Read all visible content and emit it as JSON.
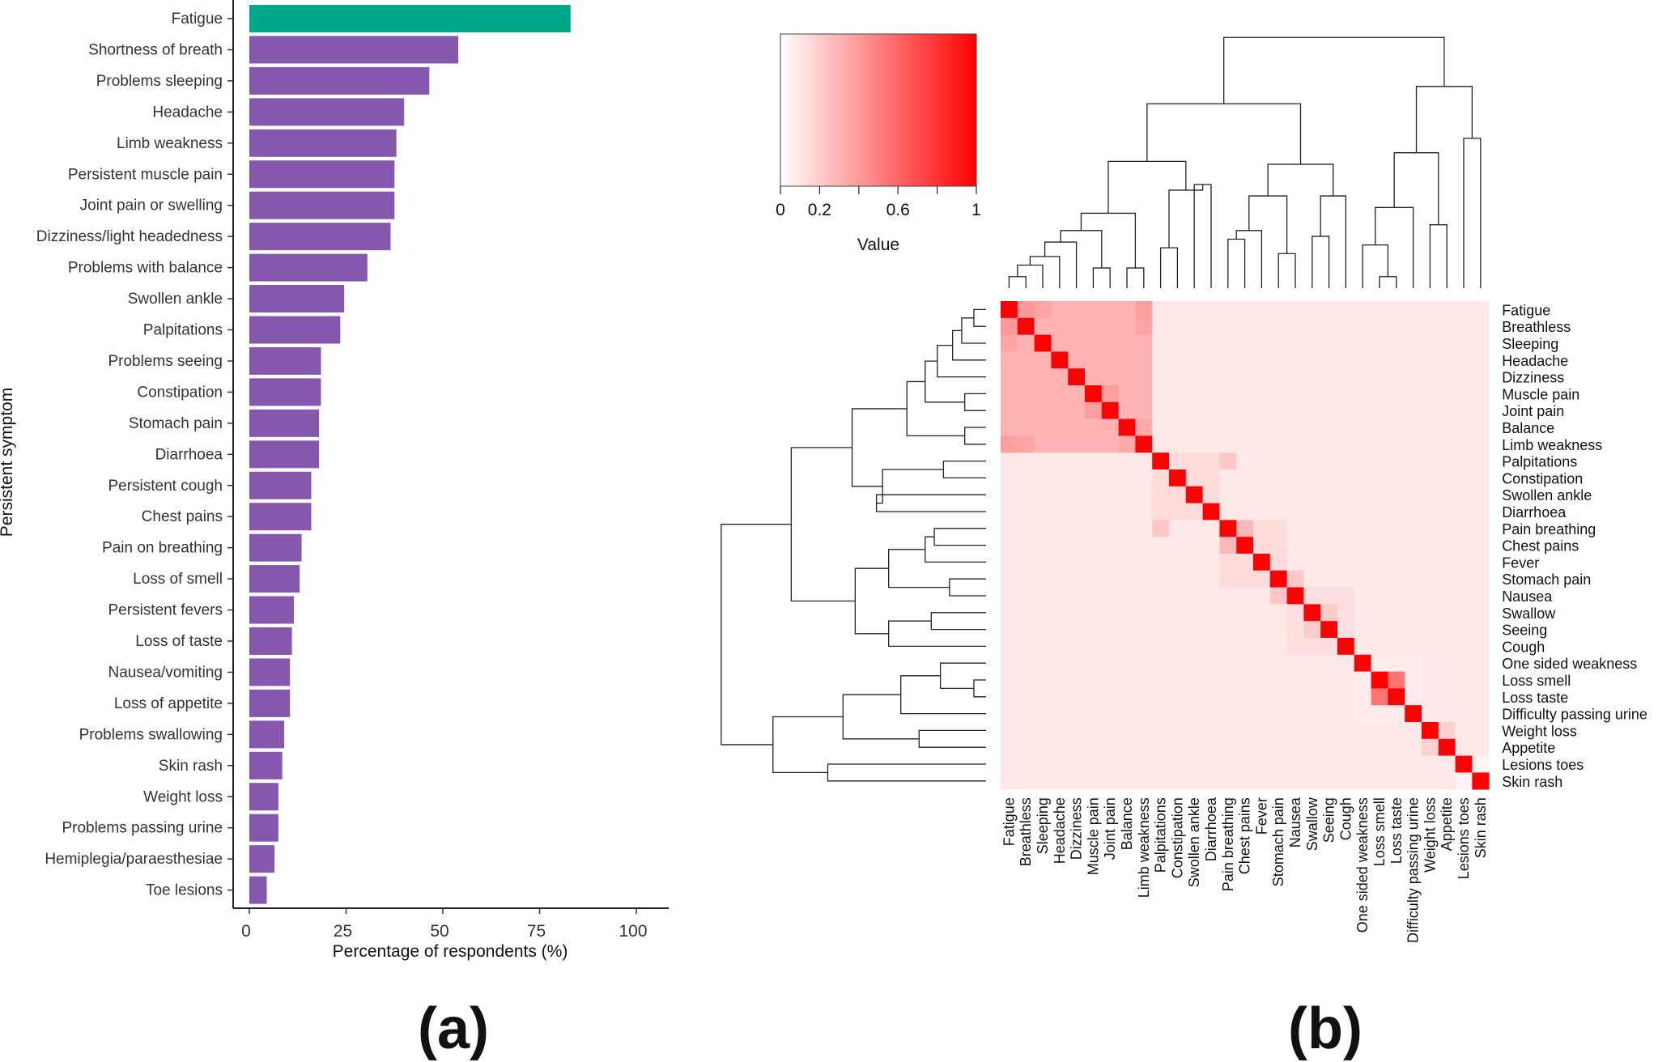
{
  "panels": {
    "a": "(a)",
    "b": "(b)"
  },
  "colors": {
    "highlight": "#00a88a",
    "bar": "#8557ad",
    "heat_low": "#ffffff",
    "heat_high": "#ff0000",
    "line": "#222222"
  },
  "chart_data": [
    {
      "type": "bar",
      "orientation": "horizontal",
      "title": "",
      "xlabel": "Percentage of respondents (%)",
      "ylabel": "Persistent symptom",
      "xlim": [
        0,
        100
      ],
      "xticks": [
        "0",
        "25",
        "50",
        "75",
        "100"
      ],
      "xtick_values": [
        0,
        25,
        50,
        75,
        100
      ],
      "grid": false,
      "categories": [
        "Fatigue",
        "Shortness of breath",
        "Problems sleeping",
        "Headache",
        "Limb weakness",
        "Persistent muscle pain",
        "Joint pain or swelling",
        "Dizziness/light headedness",
        "Problems with balance",
        "Swollen ankle",
        "Palpitations",
        "Problems seeing",
        "Constipation",
        "Stomach pain",
        "Diarrhoea",
        "Persistent cough",
        "Chest pains",
        "Pain on breathing",
        "Loss of smell",
        "Persistent fevers",
        "Loss of taste",
        "Nausea/vomiting",
        "Loss of appetite",
        "Problems swallowing",
        "Skin rash",
        "Weight loss",
        "Problems passing urine",
        "Hemiplegia/paraesthesiae",
        "Toe lesions"
      ],
      "values": [
        83,
        54,
        46.5,
        40,
        38,
        37.5,
        37.5,
        36.5,
        30.5,
        24.5,
        23.5,
        18.5,
        18.5,
        18,
        18,
        16,
        16,
        13.5,
        13,
        11.5,
        11,
        10.5,
        10.5,
        9,
        8.5,
        7.5,
        7.5,
        6.5,
        4.5
      ],
      "highlight_index": 0
    },
    {
      "type": "heatmap",
      "title": "",
      "legend": {
        "title": "Value",
        "ticks": [
          "0",
          "0.2",
          "0.6",
          "1"
        ],
        "tick_values": [
          0,
          0.2,
          0.6,
          1
        ],
        "placement": "top-left"
      },
      "row_labels": [
        "Fatigue",
        "Breathless",
        "Sleeping",
        "Headache",
        "Dizziness",
        "Muscle pain",
        "Joint pain",
        "Balance",
        "Limb weakness",
        "Palpitations",
        "Constipation",
        "Swollen ankle",
        "Diarrhoea",
        "Pain breathing",
        "Chest pains",
        "Fever",
        "Stomach pain",
        "Nausea",
        "Swallow",
        "Seeing",
        "Cough",
        "One sided weakness",
        "Loss smell",
        "Loss taste",
        "Difficulty passing urine",
        "Weight loss",
        "Appetite",
        "Lesions toes",
        "Skin rash"
      ],
      "col_labels": [
        "Fatigue",
        "Breathless",
        "Sleeping",
        "Headache",
        "Dizziness",
        "Muscle pain",
        "Joint pain",
        "Balance",
        "Limb weakness",
        "Palpitations",
        "Constipation",
        "Swollen ankle",
        "Diarrhoea",
        "Pain breathing",
        "Chest pains",
        "Fever",
        "Stomach pain",
        "Nausea",
        "Swallow",
        "Seeing",
        "Cough",
        "One sided weakness",
        "Loss smell",
        "Loss taste",
        "Difficulty passing urine",
        "Weight loss",
        "Appetite",
        "Lesions toes",
        "Skin rash"
      ],
      "groups": [
        {
          "members": [
            0,
            1,
            2,
            3,
            4,
            5,
            6,
            7,
            8
          ],
          "within": 0.3
        },
        {
          "members": [
            9,
            10,
            11,
            12
          ],
          "within": 0.14
        },
        {
          "members": [
            13,
            14,
            15,
            16
          ],
          "within": 0.14
        },
        {
          "members": [
            17,
            18,
            19,
            20
          ],
          "within": 0.13
        },
        {
          "members": [
            21,
            22,
            23,
            24
          ],
          "within": 0.08
        },
        {
          "members": [
            25,
            26
          ],
          "within": 0.1
        },
        {
          "members": [
            27,
            28
          ],
          "within": 0.05
        }
      ],
      "between_groups": 0.09,
      "pairs": [
        {
          "i": 22,
          "j": 23,
          "value": 0.55
        },
        {
          "i": 13,
          "j": 14,
          "value": 0.28
        },
        {
          "i": 0,
          "j": 1,
          "value": 0.4
        },
        {
          "i": 0,
          "j": 2,
          "value": 0.36
        },
        {
          "i": 0,
          "j": 8,
          "value": 0.38
        },
        {
          "i": 1,
          "j": 8,
          "value": 0.36
        },
        {
          "i": 5,
          "j": 6,
          "value": 0.38
        },
        {
          "i": 7,
          "j": 8,
          "value": 0.34
        },
        {
          "i": 16,
          "j": 17,
          "value": 0.22
        },
        {
          "i": 18,
          "j": 19,
          "value": 0.2
        },
        {
          "i": 25,
          "j": 26,
          "value": 0.18
        },
        {
          "i": 9,
          "j": 13,
          "value": 0.22
        }
      ],
      "diagonal": 1,
      "dendrogram": {
        "leaf_order": [
          0,
          1,
          2,
          3,
          4,
          5,
          6,
          7,
          8,
          9,
          10,
          11,
          12,
          13,
          14,
          15,
          16,
          17,
          18,
          19,
          20,
          21,
          22,
          23,
          24,
          25,
          26,
          27,
          28
        ],
        "merges": [
          [
            0,
            1,
            0.04
          ],
          [
            -1,
            2,
            0.08
          ],
          [
            -2,
            3,
            0.11
          ],
          [
            5,
            6,
            0.07
          ],
          [
            -3,
            4,
            0.16
          ],
          [
            -5,
            -4,
            0.2
          ],
          [
            7,
            8,
            0.07
          ],
          [
            -6,
            -7,
            0.26
          ],
          [
            9,
            10,
            0.14
          ],
          [
            11,
            12,
            0.36
          ],
          [
            -9,
            -10,
            0.34
          ],
          [
            -8,
            -11,
            0.44
          ],
          [
            13,
            14,
            0.17
          ],
          [
            -13,
            15,
            0.2
          ],
          [
            16,
            17,
            0.12
          ],
          [
            -14,
            -15,
            0.32
          ],
          [
            18,
            19,
            0.18
          ],
          [
            -17,
            20,
            0.32
          ],
          [
            -16,
            -18,
            0.43
          ],
          [
            -12,
            -19,
            0.64
          ],
          [
            22,
            23,
            0.04
          ],
          [
            21,
            -21,
            0.15
          ],
          [
            -22,
            24,
            0.28
          ],
          [
            25,
            26,
            0.22
          ],
          [
            -23,
            -24,
            0.47
          ],
          [
            27,
            28,
            0.52
          ],
          [
            -25,
            -26,
            0.7
          ],
          [
            -20,
            -27,
            0.87
          ]
        ]
      }
    }
  ]
}
